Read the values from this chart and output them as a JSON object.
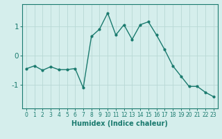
{
  "xlabel": "Humidex (Indice chaleur)",
  "x": [
    0,
    1,
    2,
    3,
    4,
    5,
    6,
    7,
    8,
    9,
    10,
    11,
    12,
    13,
    14,
    15,
    16,
    17,
    18,
    19,
    20,
    21,
    22,
    23
  ],
  "y": [
    -0.45,
    -0.35,
    -0.5,
    -0.38,
    -0.48,
    -0.48,
    -0.44,
    -1.1,
    0.65,
    0.9,
    1.45,
    0.7,
    1.05,
    0.55,
    1.05,
    1.15,
    0.7,
    0.2,
    -0.35,
    -0.7,
    -1.05,
    -1.05,
    -1.25,
    -1.4
  ],
  "line_color": "#1a7a6e",
  "marker": "o",
  "marker_size": 2.0,
  "line_width": 1.0,
  "bg_color": "#d5eeec",
  "grid_color": "#b8d8d5",
  "tick_label_color": "#1a7a6e",
  "axis_label_color": "#1a7a6e",
  "ylim": [
    -1.8,
    1.75
  ],
  "yticks": [
    -1,
    0,
    1
  ],
  "xlim": [
    -0.5,
    23.5
  ],
  "xticks": [
    0,
    1,
    2,
    3,
    4,
    5,
    6,
    7,
    8,
    9,
    10,
    11,
    12,
    13,
    14,
    15,
    16,
    17,
    18,
    19,
    20,
    21,
    22,
    23
  ],
  "xlabel_fontsize": 7,
  "tick_fontsize": 5.5,
  "ytick_fontsize": 7.5
}
